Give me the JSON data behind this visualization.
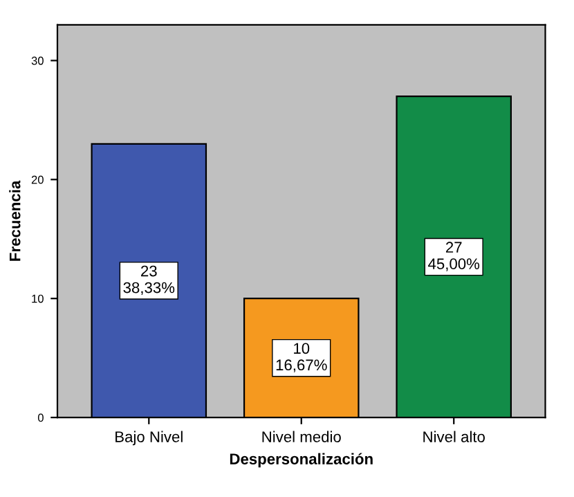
{
  "chart_data": {
    "type": "bar",
    "xlabel": "Despersonalización",
    "ylabel": "Frecuencia",
    "categories": [
      "Bajo Nivel",
      "Nivel medio",
      "Nivel alto"
    ],
    "values": [
      23,
      10,
      27
    ],
    "colors": [
      "#3f58ad",
      "#f5991f",
      "#128c48"
    ],
    "value_labels": [
      "23\n38,33%",
      "10\n16,67%",
      "27\n45,00%"
    ],
    "ylim": [
      0,
      33
    ],
    "yticks": [
      0,
      10,
      20,
      30
    ],
    "grid": false,
    "legend": false
  }
}
